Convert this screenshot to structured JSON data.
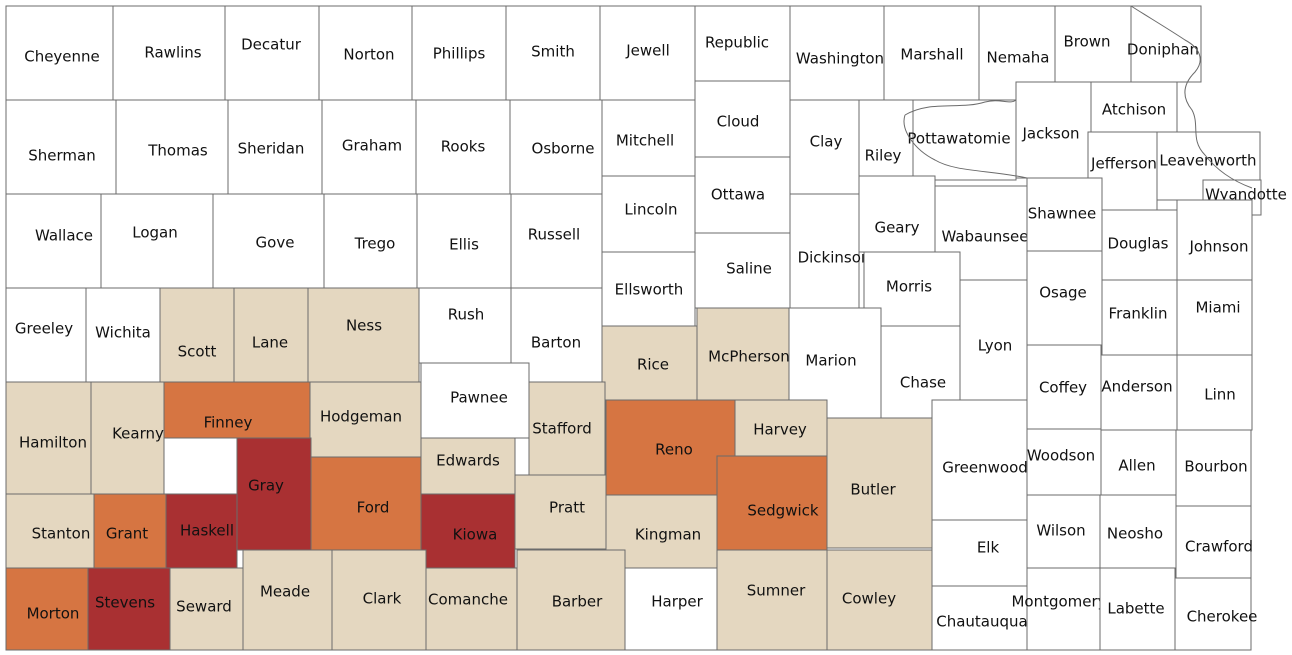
{
  "colors": {
    "none": "#ffffff",
    "low": "#e4d7c0",
    "medium": "#d67542",
    "high": "#a93032"
  },
  "counties": [
    {
      "name": "Cheyenne",
      "level": "none"
    },
    {
      "name": "Rawlins",
      "level": "none"
    },
    {
      "name": "Decatur",
      "level": "none"
    },
    {
      "name": "Norton",
      "level": "none"
    },
    {
      "name": "Phillips",
      "level": "none"
    },
    {
      "name": "Smith",
      "level": "none"
    },
    {
      "name": "Jewell",
      "level": "none"
    },
    {
      "name": "Republic",
      "level": "none"
    },
    {
      "name": "Washington",
      "level": "none"
    },
    {
      "name": "Marshall",
      "level": "none"
    },
    {
      "name": "Nemaha",
      "level": "none"
    },
    {
      "name": "Brown",
      "level": "none"
    },
    {
      "name": "Doniphan",
      "level": "none"
    },
    {
      "name": "Sherman",
      "level": "none"
    },
    {
      "name": "Thomas",
      "level": "none"
    },
    {
      "name": "Sheridan",
      "level": "none"
    },
    {
      "name": "Graham",
      "level": "none"
    },
    {
      "name": "Rooks",
      "level": "none"
    },
    {
      "name": "Osborne",
      "level": "none"
    },
    {
      "name": "Mitchell",
      "level": "none"
    },
    {
      "name": "Cloud",
      "level": "none"
    },
    {
      "name": "Clay",
      "level": "none"
    },
    {
      "name": "Riley",
      "level": "none"
    },
    {
      "name": "Pottawatomie",
      "level": "none"
    },
    {
      "name": "Jackson",
      "level": "none"
    },
    {
      "name": "Atchison",
      "level": "none"
    },
    {
      "name": "Jefferson",
      "level": "none"
    },
    {
      "name": "Leavenworth",
      "level": "none"
    },
    {
      "name": "Wyandotte",
      "level": "none"
    },
    {
      "name": "Wallace",
      "level": "none"
    },
    {
      "name": "Logan",
      "level": "none"
    },
    {
      "name": "Gove",
      "level": "none"
    },
    {
      "name": "Trego",
      "level": "none"
    },
    {
      "name": "Ellis",
      "level": "none"
    },
    {
      "name": "Russell",
      "level": "none"
    },
    {
      "name": "Lincoln",
      "level": "none"
    },
    {
      "name": "Ottawa",
      "level": "none"
    },
    {
      "name": "Dickinson",
      "level": "none"
    },
    {
      "name": "Geary",
      "level": "none"
    },
    {
      "name": "Wabaunsee",
      "level": "none"
    },
    {
      "name": "Shawnee",
      "level": "none"
    },
    {
      "name": "Douglas",
      "level": "none"
    },
    {
      "name": "Johnson",
      "level": "none"
    },
    {
      "name": "Greeley",
      "level": "none"
    },
    {
      "name": "Wichita",
      "level": "none"
    },
    {
      "name": "Scott",
      "level": "low"
    },
    {
      "name": "Lane",
      "level": "low"
    },
    {
      "name": "Ness",
      "level": "low"
    },
    {
      "name": "Rush",
      "level": "none"
    },
    {
      "name": "Barton",
      "level": "none"
    },
    {
      "name": "Ellsworth",
      "level": "none"
    },
    {
      "name": "Saline",
      "level": "none"
    },
    {
      "name": "Morris",
      "level": "none"
    },
    {
      "name": "Lyon",
      "level": "none"
    },
    {
      "name": "Osage",
      "level": "none"
    },
    {
      "name": "Franklin",
      "level": "none"
    },
    {
      "name": "Miami",
      "level": "none"
    },
    {
      "name": "Rice",
      "level": "low"
    },
    {
      "name": "McPherson",
      "level": "low"
    },
    {
      "name": "Marion",
      "level": "none"
    },
    {
      "name": "Chase",
      "level": "none"
    },
    {
      "name": "Hamilton",
      "level": "low"
    },
    {
      "name": "Kearny",
      "level": "low"
    },
    {
      "name": "Finney",
      "level": "medium"
    },
    {
      "name": "Hodgeman",
      "level": "low"
    },
    {
      "name": "Pawnee",
      "level": "none"
    },
    {
      "name": "Stafford",
      "level": "low"
    },
    {
      "name": "Reno",
      "level": "medium"
    },
    {
      "name": "Harvey",
      "level": "low"
    },
    {
      "name": "Coffey",
      "level": "none"
    },
    {
      "name": "Anderson",
      "level": "none"
    },
    {
      "name": "Linn",
      "level": "none"
    },
    {
      "name": "Gray",
      "level": "high"
    },
    {
      "name": "Edwards",
      "level": "low"
    },
    {
      "name": "Butler",
      "level": "low"
    },
    {
      "name": "Greenwood",
      "level": "none"
    },
    {
      "name": "Woodson",
      "level": "none"
    },
    {
      "name": "Allen",
      "level": "none"
    },
    {
      "name": "Bourbon",
      "level": "none"
    },
    {
      "name": "Stanton",
      "level": "low"
    },
    {
      "name": "Grant",
      "level": "medium"
    },
    {
      "name": "Haskell",
      "level": "high"
    },
    {
      "name": "Ford",
      "level": "medium"
    },
    {
      "name": "Kiowa",
      "level": "high"
    },
    {
      "name": "Pratt",
      "level": "low"
    },
    {
      "name": "Kingman",
      "level": "low"
    },
    {
      "name": "Sedgwick",
      "level": "medium"
    },
    {
      "name": "Elk",
      "level": "none"
    },
    {
      "name": "Wilson",
      "level": "none"
    },
    {
      "name": "Neosho",
      "level": "none"
    },
    {
      "name": "Crawford",
      "level": "none"
    },
    {
      "name": "Morton",
      "level": "medium"
    },
    {
      "name": "Stevens",
      "level": "high"
    },
    {
      "name": "Seward",
      "level": "low"
    },
    {
      "name": "Meade",
      "level": "low"
    },
    {
      "name": "Clark",
      "level": "low"
    },
    {
      "name": "Comanche",
      "level": "low"
    },
    {
      "name": "Barber",
      "level": "low"
    },
    {
      "name": "Harper",
      "level": "none"
    },
    {
      "name": "Sumner",
      "level": "low"
    },
    {
      "name": "Cowley",
      "level": "low"
    },
    {
      "name": "Chautauqua",
      "level": "none"
    },
    {
      "name": "Montgomery",
      "level": "none"
    },
    {
      "name": "Labette",
      "level": "none"
    },
    {
      "name": "Cherokee",
      "level": "none"
    }
  ]
}
